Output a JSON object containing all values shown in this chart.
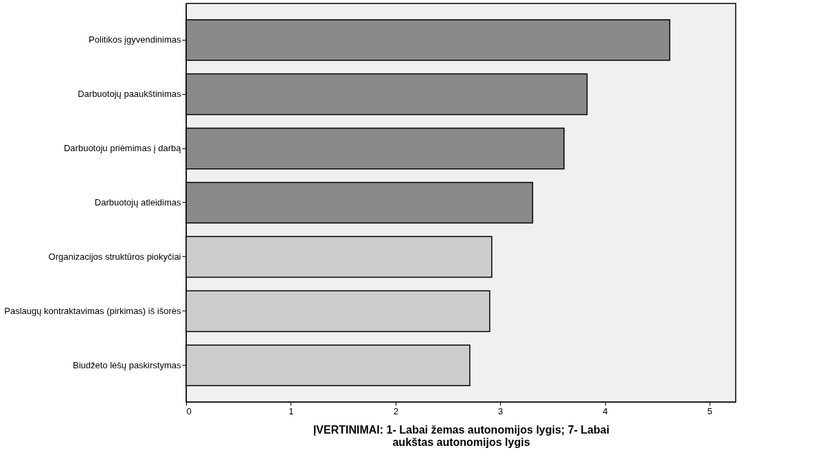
{
  "chart_data": {
    "type": "bar",
    "orientation": "horizontal",
    "xlabel": "ĮVERTINIMAI: 1- Labai žemas autonomijos lygis; 7- Labai aukštas autonomijos lygis",
    "categories": [
      "Politikos įgyvendinimas",
      "Darbuotojų paaukštinimas",
      "Darbuotoju priėmimas į darbą",
      "Darbuotojų atleidimas",
      "Organizacijos struktūros piokyčiai",
      "Paslaugų kontraktavimas (pirkimas) iš išorės",
      "Biudžeto lėšų paskirstymas"
    ],
    "values": [
      4.62,
      3.83,
      3.61,
      3.31,
      2.92,
      2.9,
      2.71
    ],
    "colors": [
      "#8a8a8a",
      "#8a8a8a",
      "#8a8a8a",
      "#8a8a8a",
      "#cccccc",
      "#cccccc",
      "#cccccc"
    ],
    "xlim": [
      0,
      5.25
    ],
    "xticks": [
      0,
      1,
      2,
      3,
      4,
      5
    ],
    "grid": false
  }
}
